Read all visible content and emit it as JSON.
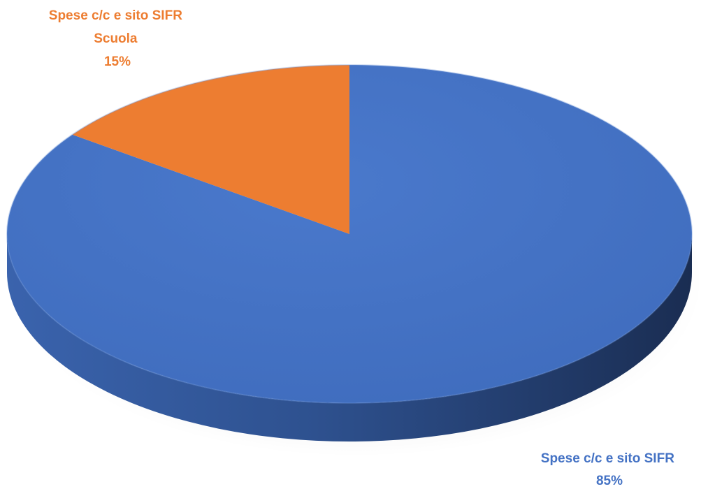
{
  "chart_data": {
    "type": "pie",
    "style": "3d",
    "slices": [
      {
        "label_line1": "Spese c/c e sito SIFR",
        "label_line2": "",
        "percent_label": "85%",
        "value": 85,
        "color": "#4472C4",
        "side_color": "#2B4A80"
      },
      {
        "label_line1": "Spese c/c e sito SIFR",
        "label_line2": "Scuola",
        "percent_label": "15%",
        "value": 15,
        "color": "#ED7D31",
        "side_color": "#B85F22"
      }
    ]
  }
}
